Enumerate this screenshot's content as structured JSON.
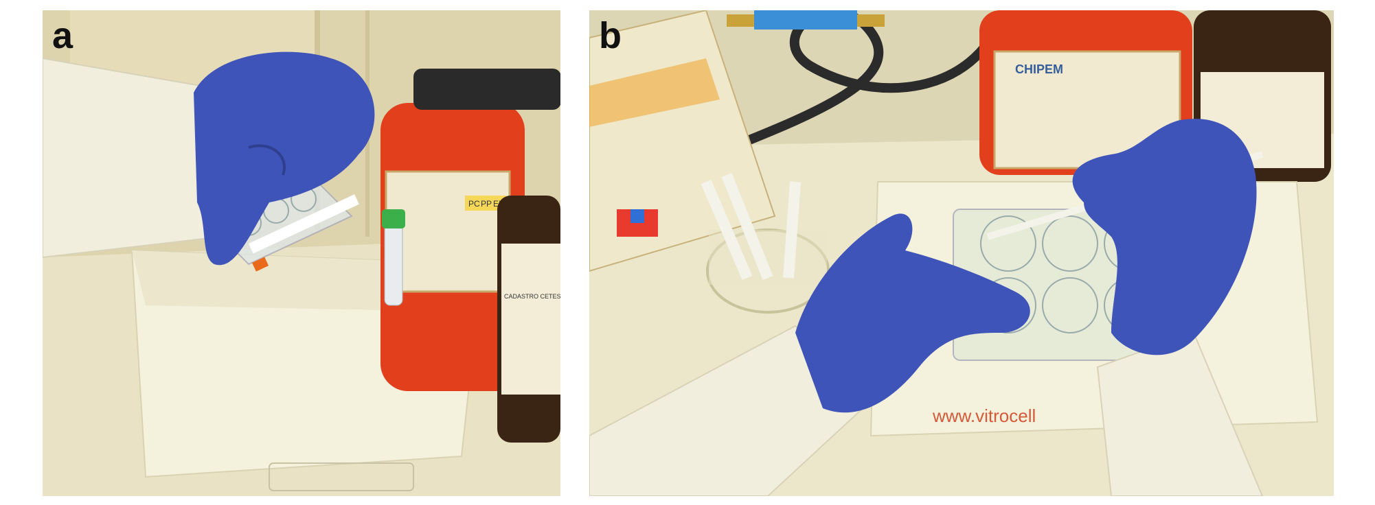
{
  "panels": [
    {
      "letter": "a",
      "scene": "gloved hand placing a multi-well plate on a foam box beside chemical bottles",
      "visible_text": {
        "jar_label_tags": [
          "PC",
          "PP",
          "EX"
        ],
        "bottle_label": "CADASTRO CETESB"
      }
    },
    {
      "letter": "b",
      "scene": "gloved hands pipetting into a multi-well plate on a foam box",
      "visible_text": {
        "jar_brand": "CHIPEM",
        "box_print": "www.vitrocell"
      }
    }
  ],
  "colors": {
    "glove": "#3f54b8",
    "lab_coat": "#f2eedd",
    "orange_jar": "#e2401c",
    "foam": "#f4f1dc",
    "background": "#d8cfa8"
  }
}
